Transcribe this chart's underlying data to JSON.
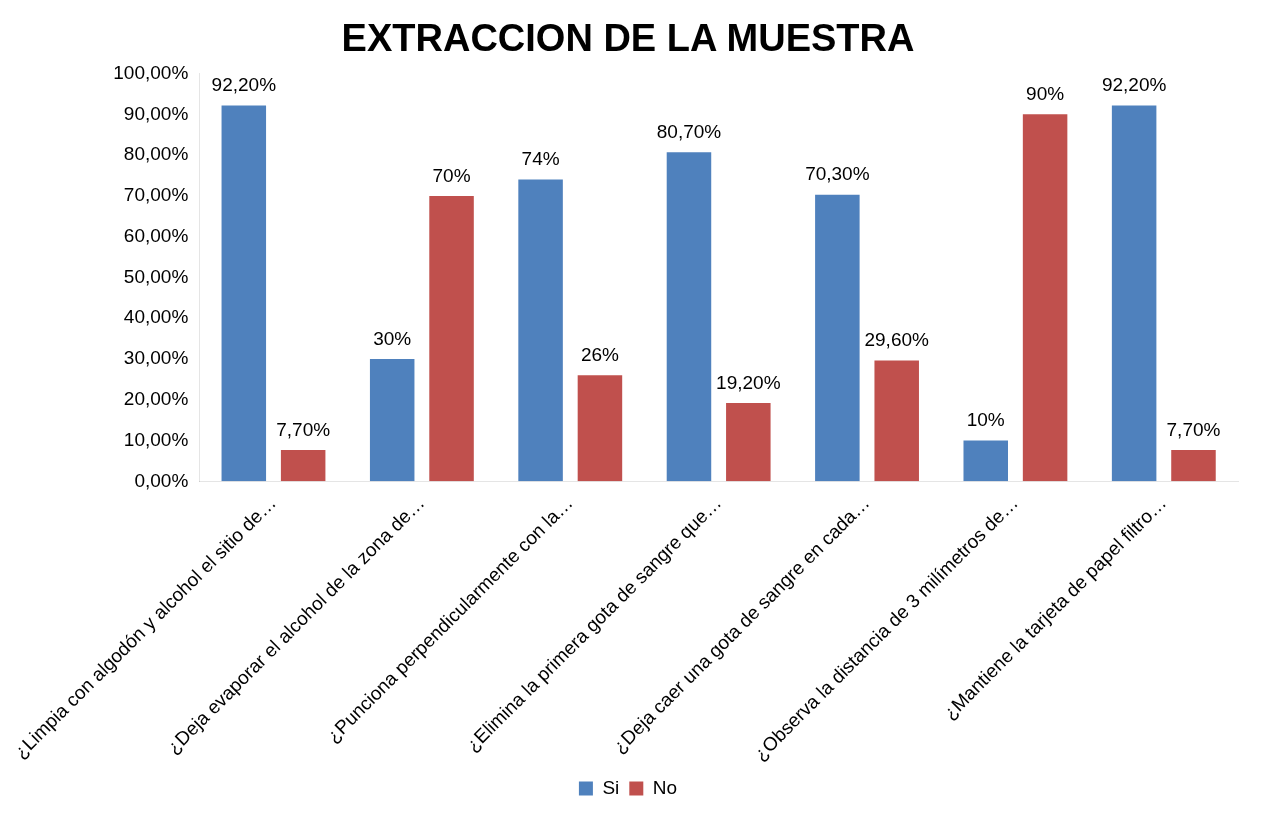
{
  "chart_data": {
    "type": "bar",
    "title": "EXTRACCION DE LA MUESTRA",
    "categories": [
      "¿Limpia con algodón y alcohol el sitio de…",
      "¿Deja evaporar el alcohol de la zona de…",
      "¿Punciona perpendicularmente con la…",
      "¿Elimina la primera gota de sangre que…",
      "¿Deja caer una gota de sangre en cada…",
      "¿Observa la distancia de 3 milímetros de…",
      "¿Mantiene la tarjeta de papel filtro…"
    ],
    "series": [
      {
        "name": "Si",
        "color": "#4f81bd",
        "values": [
          92.2,
          30,
          74,
          80.7,
          70.3,
          10,
          92.2
        ],
        "value_labels": [
          "92,20%",
          "30%",
          "74%",
          "80,70%",
          "70,30%",
          "10%",
          "92,20%"
        ]
      },
      {
        "name": "No",
        "color": "#c0504d",
        "values": [
          7.7,
          70,
          26,
          19.2,
          29.6,
          90,
          7.7
        ],
        "value_labels": [
          "7,70%",
          "70%",
          "26%",
          "19,20%",
          "29,60%",
          "90%",
          "7,70%"
        ]
      }
    ],
    "ylim": [
      0,
      100
    ],
    "yticks": [
      {
        "value": 0,
        "label": "0,00%"
      },
      {
        "value": 10,
        "label": "10,00%"
      },
      {
        "value": 20,
        "label": "20,00%"
      },
      {
        "value": 30,
        "label": "30,00%"
      },
      {
        "value": 40,
        "label": "40,00%"
      },
      {
        "value": 50,
        "label": "50,00%"
      },
      {
        "value": 60,
        "label": "60,00%"
      },
      {
        "value": 70,
        "label": "70,00%"
      },
      {
        "value": 80,
        "label": "80,00%"
      },
      {
        "value": 90,
        "label": "90,00%"
      },
      {
        "value": 100,
        "label": "100,00%"
      }
    ],
    "grid": false,
    "legend": "bottom"
  }
}
